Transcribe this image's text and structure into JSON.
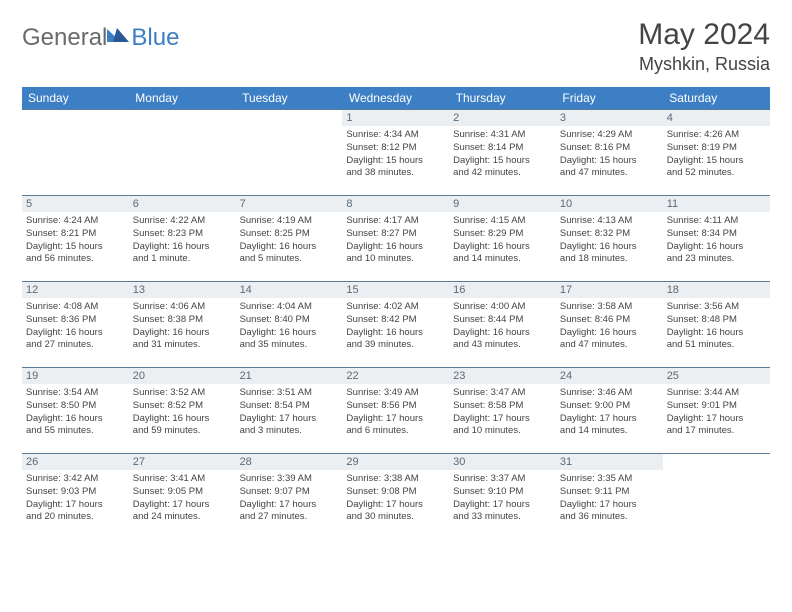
{
  "brand": {
    "part1": "General",
    "part2": "Blue"
  },
  "title": {
    "month_year": "May 2024",
    "location": "Myshkin, Russia"
  },
  "style": {
    "header_bg": "#3d7fc4",
    "header_text": "#ffffff",
    "daynum_bg": "#eceff1",
    "daynum_text": "#5a6a78",
    "border_color": "#5a7a98",
    "body_text": "#444444"
  },
  "weekdays": [
    "Sunday",
    "Monday",
    "Tuesday",
    "Wednesday",
    "Thursday",
    "Friday",
    "Saturday"
  ],
  "weeks": [
    [
      {
        "empty": true
      },
      {
        "empty": true
      },
      {
        "empty": true
      },
      {
        "day": "1",
        "sunrise": "Sunrise: 4:34 AM",
        "sunset": "Sunset: 8:12 PM",
        "daylight1": "Daylight: 15 hours",
        "daylight2": "and 38 minutes."
      },
      {
        "day": "2",
        "sunrise": "Sunrise: 4:31 AM",
        "sunset": "Sunset: 8:14 PM",
        "daylight1": "Daylight: 15 hours",
        "daylight2": "and 42 minutes."
      },
      {
        "day": "3",
        "sunrise": "Sunrise: 4:29 AM",
        "sunset": "Sunset: 8:16 PM",
        "daylight1": "Daylight: 15 hours",
        "daylight2": "and 47 minutes."
      },
      {
        "day": "4",
        "sunrise": "Sunrise: 4:26 AM",
        "sunset": "Sunset: 8:19 PM",
        "daylight1": "Daylight: 15 hours",
        "daylight2": "and 52 minutes."
      }
    ],
    [
      {
        "day": "5",
        "sunrise": "Sunrise: 4:24 AM",
        "sunset": "Sunset: 8:21 PM",
        "daylight1": "Daylight: 15 hours",
        "daylight2": "and 56 minutes."
      },
      {
        "day": "6",
        "sunrise": "Sunrise: 4:22 AM",
        "sunset": "Sunset: 8:23 PM",
        "daylight1": "Daylight: 16 hours",
        "daylight2": "and 1 minute."
      },
      {
        "day": "7",
        "sunrise": "Sunrise: 4:19 AM",
        "sunset": "Sunset: 8:25 PM",
        "daylight1": "Daylight: 16 hours",
        "daylight2": "and 5 minutes."
      },
      {
        "day": "8",
        "sunrise": "Sunrise: 4:17 AM",
        "sunset": "Sunset: 8:27 PM",
        "daylight1": "Daylight: 16 hours",
        "daylight2": "and 10 minutes."
      },
      {
        "day": "9",
        "sunrise": "Sunrise: 4:15 AM",
        "sunset": "Sunset: 8:29 PM",
        "daylight1": "Daylight: 16 hours",
        "daylight2": "and 14 minutes."
      },
      {
        "day": "10",
        "sunrise": "Sunrise: 4:13 AM",
        "sunset": "Sunset: 8:32 PM",
        "daylight1": "Daylight: 16 hours",
        "daylight2": "and 18 minutes."
      },
      {
        "day": "11",
        "sunrise": "Sunrise: 4:11 AM",
        "sunset": "Sunset: 8:34 PM",
        "daylight1": "Daylight: 16 hours",
        "daylight2": "and 23 minutes."
      }
    ],
    [
      {
        "day": "12",
        "sunrise": "Sunrise: 4:08 AM",
        "sunset": "Sunset: 8:36 PM",
        "daylight1": "Daylight: 16 hours",
        "daylight2": "and 27 minutes."
      },
      {
        "day": "13",
        "sunrise": "Sunrise: 4:06 AM",
        "sunset": "Sunset: 8:38 PM",
        "daylight1": "Daylight: 16 hours",
        "daylight2": "and 31 minutes."
      },
      {
        "day": "14",
        "sunrise": "Sunrise: 4:04 AM",
        "sunset": "Sunset: 8:40 PM",
        "daylight1": "Daylight: 16 hours",
        "daylight2": "and 35 minutes."
      },
      {
        "day": "15",
        "sunrise": "Sunrise: 4:02 AM",
        "sunset": "Sunset: 8:42 PM",
        "daylight1": "Daylight: 16 hours",
        "daylight2": "and 39 minutes."
      },
      {
        "day": "16",
        "sunrise": "Sunrise: 4:00 AM",
        "sunset": "Sunset: 8:44 PM",
        "daylight1": "Daylight: 16 hours",
        "daylight2": "and 43 minutes."
      },
      {
        "day": "17",
        "sunrise": "Sunrise: 3:58 AM",
        "sunset": "Sunset: 8:46 PM",
        "daylight1": "Daylight: 16 hours",
        "daylight2": "and 47 minutes."
      },
      {
        "day": "18",
        "sunrise": "Sunrise: 3:56 AM",
        "sunset": "Sunset: 8:48 PM",
        "daylight1": "Daylight: 16 hours",
        "daylight2": "and 51 minutes."
      }
    ],
    [
      {
        "day": "19",
        "sunrise": "Sunrise: 3:54 AM",
        "sunset": "Sunset: 8:50 PM",
        "daylight1": "Daylight: 16 hours",
        "daylight2": "and 55 minutes."
      },
      {
        "day": "20",
        "sunrise": "Sunrise: 3:52 AM",
        "sunset": "Sunset: 8:52 PM",
        "daylight1": "Daylight: 16 hours",
        "daylight2": "and 59 minutes."
      },
      {
        "day": "21",
        "sunrise": "Sunrise: 3:51 AM",
        "sunset": "Sunset: 8:54 PM",
        "daylight1": "Daylight: 17 hours",
        "daylight2": "and 3 minutes."
      },
      {
        "day": "22",
        "sunrise": "Sunrise: 3:49 AM",
        "sunset": "Sunset: 8:56 PM",
        "daylight1": "Daylight: 17 hours",
        "daylight2": "and 6 minutes."
      },
      {
        "day": "23",
        "sunrise": "Sunrise: 3:47 AM",
        "sunset": "Sunset: 8:58 PM",
        "daylight1": "Daylight: 17 hours",
        "daylight2": "and 10 minutes."
      },
      {
        "day": "24",
        "sunrise": "Sunrise: 3:46 AM",
        "sunset": "Sunset: 9:00 PM",
        "daylight1": "Daylight: 17 hours",
        "daylight2": "and 14 minutes."
      },
      {
        "day": "25",
        "sunrise": "Sunrise: 3:44 AM",
        "sunset": "Sunset: 9:01 PM",
        "daylight1": "Daylight: 17 hours",
        "daylight2": "and 17 minutes."
      }
    ],
    [
      {
        "day": "26",
        "sunrise": "Sunrise: 3:42 AM",
        "sunset": "Sunset: 9:03 PM",
        "daylight1": "Daylight: 17 hours",
        "daylight2": "and 20 minutes."
      },
      {
        "day": "27",
        "sunrise": "Sunrise: 3:41 AM",
        "sunset": "Sunset: 9:05 PM",
        "daylight1": "Daylight: 17 hours",
        "daylight2": "and 24 minutes."
      },
      {
        "day": "28",
        "sunrise": "Sunrise: 3:39 AM",
        "sunset": "Sunset: 9:07 PM",
        "daylight1": "Daylight: 17 hours",
        "daylight2": "and 27 minutes."
      },
      {
        "day": "29",
        "sunrise": "Sunrise: 3:38 AM",
        "sunset": "Sunset: 9:08 PM",
        "daylight1": "Daylight: 17 hours",
        "daylight2": "and 30 minutes."
      },
      {
        "day": "30",
        "sunrise": "Sunrise: 3:37 AM",
        "sunset": "Sunset: 9:10 PM",
        "daylight1": "Daylight: 17 hours",
        "daylight2": "and 33 minutes."
      },
      {
        "day": "31",
        "sunrise": "Sunrise: 3:35 AM",
        "sunset": "Sunset: 9:11 PM",
        "daylight1": "Daylight: 17 hours",
        "daylight2": "and 36 minutes."
      },
      {
        "empty": true
      }
    ]
  ]
}
